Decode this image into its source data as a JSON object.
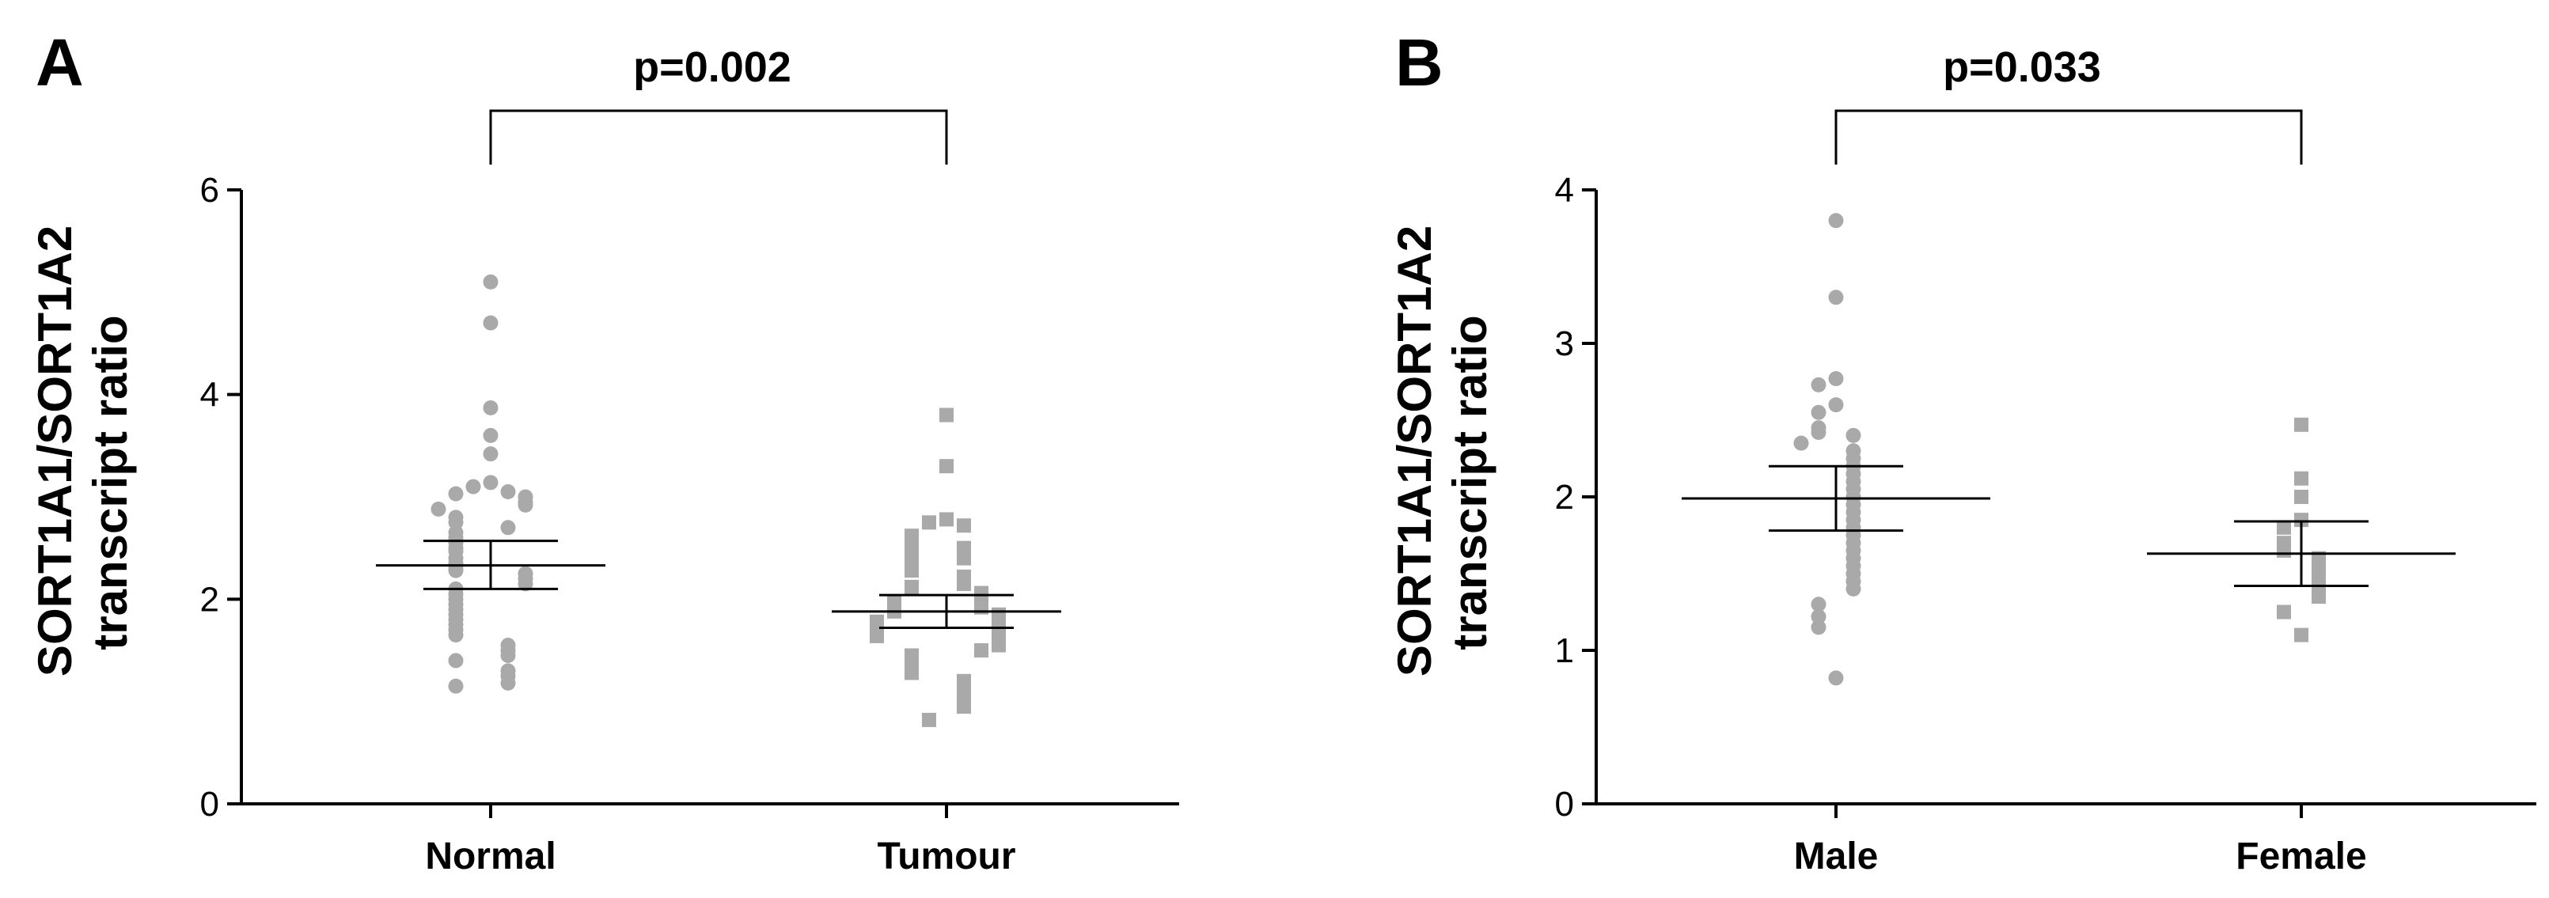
{
  "chart_data": [
    {
      "type": "scatter",
      "panel_label": "A",
      "ylabel_line1": "SORT1A1/SORT1A2",
      "ylabel_line2": "transcript ratio",
      "ylim": [
        0,
        6
      ],
      "yticks": [
        "0",
        "2",
        "4",
        "6"
      ],
      "categories": [
        "Normal",
        "Tumour"
      ],
      "comparison": "p=0.002",
      "groups": [
        {
          "category": "Normal",
          "marker": "circle",
          "mean": 2.33,
          "sem_low": 2.1,
          "sem_high": 2.57,
          "values": [
            5.1,
            4.7,
            3.87,
            3.6,
            3.42,
            3.14,
            3.1,
            3.05,
            3.03,
            3.0,
            2.95,
            2.92,
            2.88,
            2.8,
            2.75,
            2.7,
            2.65,
            2.6,
            2.55,
            2.5,
            2.47,
            2.4,
            2.35,
            2.3,
            2.28,
            2.25,
            2.2,
            2.15,
            2.1,
            2.05,
            2.0,
            1.95,
            1.9,
            1.85,
            1.8,
            1.75,
            1.7,
            1.65,
            1.55,
            1.5,
            1.45,
            1.4,
            1.3,
            1.25,
            1.18,
            1.15
          ]
        },
        {
          "category": "Tumour",
          "marker": "square",
          "mean": 1.88,
          "sem_low": 1.72,
          "sem_high": 2.04,
          "values": [
            3.8,
            3.3,
            2.78,
            2.75,
            2.72,
            2.62,
            2.58,
            2.5,
            2.45,
            2.4,
            2.35,
            2.28,
            2.22,
            2.15,
            2.12,
            2.1,
            2.06,
            2.02,
            1.98,
            1.95,
            1.92,
            1.9,
            1.88,
            1.85,
            1.82,
            1.8,
            1.78,
            1.75,
            1.72,
            1.7,
            1.68,
            1.66,
            1.64,
            1.6,
            1.55,
            1.5,
            1.45,
            1.4,
            1.35,
            1.28,
            1.2,
            1.12,
            1.05,
            0.95,
            0.82
          ]
        }
      ]
    },
    {
      "type": "scatter",
      "panel_label": "B",
      "ylabel_line1": "SORT1A1/SORT1A2",
      "ylabel_line2": "transcript ratio",
      "ylim": [
        0,
        4
      ],
      "yticks": [
        "0",
        "1",
        "2",
        "3",
        "4"
      ],
      "categories": [
        "Male",
        "Female"
      ],
      "comparison": "p=0.033",
      "groups": [
        {
          "category": "Male",
          "marker": "circle",
          "mean": 1.99,
          "sem_low": 1.78,
          "sem_high": 2.2,
          "values": [
            3.8,
            3.3,
            2.77,
            2.73,
            2.6,
            2.55,
            2.45,
            2.42,
            2.4,
            2.35,
            2.3,
            2.25,
            2.2,
            2.15,
            2.1,
            2.05,
            2.0,
            1.95,
            1.9,
            1.85,
            1.8,
            1.75,
            1.7,
            1.65,
            1.6,
            1.55,
            1.5,
            1.45,
            1.4,
            1.3,
            1.22,
            1.15,
            0.82
          ]
        },
        {
          "category": "Female",
          "marker": "square",
          "mean": 1.63,
          "sem_low": 1.42,
          "sem_high": 1.84,
          "values": [
            2.47,
            2.12,
            2.0,
            1.85,
            1.8,
            1.7,
            1.65,
            1.6,
            1.55,
            1.5,
            1.45,
            1.4,
            1.35,
            1.25,
            1.1
          ]
        }
      ]
    }
  ]
}
